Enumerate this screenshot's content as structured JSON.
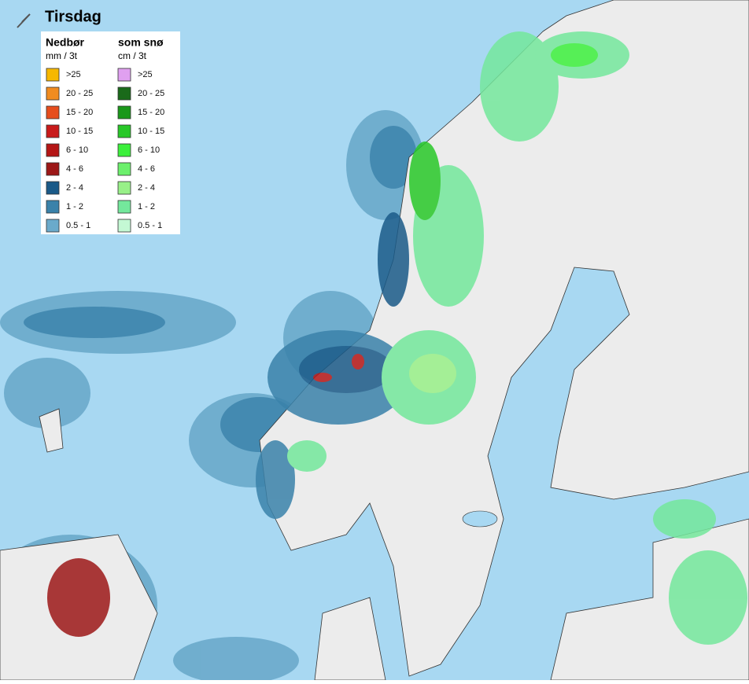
{
  "title": "Tirsdag",
  "legend": {
    "rain": {
      "heading": "Nedbør",
      "unit": "mm / 3t",
      "items": [
        {
          "label": ">25",
          "color": "#f6b800"
        },
        {
          "label": "20 - 25",
          "color": "#f08c20"
        },
        {
          "label": "15 - 20",
          "color": "#e64e1e"
        },
        {
          "label": "10 - 15",
          "color": "#c81a1a"
        },
        {
          "label": "6 - 10",
          "color": "#b41616"
        },
        {
          "label": "4 - 6",
          "color": "#9c1818"
        },
        {
          "label": "2 - 4",
          "color": "#1a5a88"
        },
        {
          "label": "1 - 2",
          "color": "#3a82aa"
        },
        {
          "label": "0.5 - 1",
          "color": "#6aaacb"
        }
      ]
    },
    "snow": {
      "heading": "som snø",
      "unit": "cm / 3t",
      "items": [
        {
          "label": ">25",
          "color": "#e0a0f0"
        },
        {
          "label": "20 - 25",
          "color": "#1a6a1a"
        },
        {
          "label": "15 - 20",
          "color": "#1a981a"
        },
        {
          "label": "10 - 15",
          "color": "#28c828"
        },
        {
          "label": "6 - 10",
          "color": "#3cf03c"
        },
        {
          "label": "4 - 6",
          "color": "#6cf06c"
        },
        {
          "label": "2 - 4",
          "color": "#98f088"
        },
        {
          "label": "1 - 2",
          "color": "#74e89c"
        },
        {
          "label": "0.5 - 1",
          "color": "#c4f8d4"
        }
      ]
    }
  }
}
